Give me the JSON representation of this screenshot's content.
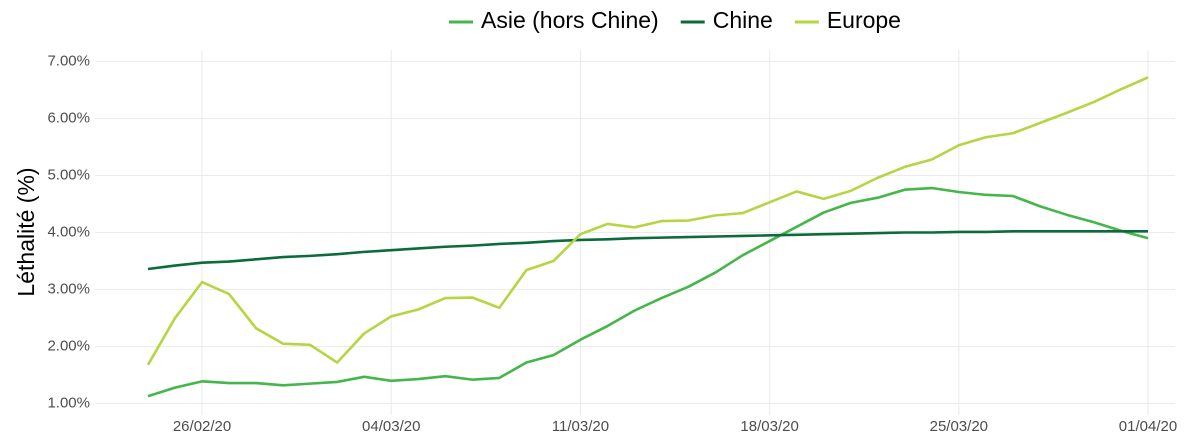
{
  "chart_data": {
    "type": "line",
    "y_label": "Léthalité (%)",
    "categories": [
      null,
      null,
      "26/02/20",
      null,
      null,
      null,
      null,
      null,
      null,
      "04/03/20",
      null,
      null,
      null,
      null,
      null,
      null,
      "11/03/20",
      null,
      null,
      null,
      null,
      null,
      null,
      "18/03/20",
      null,
      null,
      null,
      null,
      null,
      null,
      "25/03/20",
      null,
      null,
      null,
      null,
      null,
      null,
      "01/04/20"
    ],
    "series": [
      {
        "name": "Asie (hors Chine)",
        "color": "#45b649",
        "values": [
          1.13,
          1.28,
          1.39,
          1.36,
          1.36,
          1.32,
          1.35,
          1.38,
          1.47,
          1.4,
          1.43,
          1.48,
          1.42,
          1.45,
          1.72,
          1.85,
          2.12,
          2.36,
          2.63,
          2.85,
          3.05,
          3.3,
          3.6,
          3.85,
          4.1,
          4.35,
          4.52,
          4.61,
          4.75,
          4.78,
          4.71,
          4.66,
          4.64,
          4.46,
          4.31,
          4.18,
          4.03,
          3.9
        ]
      },
      {
        "name": "Chine",
        "color": "#0c6b3a",
        "values": [
          3.36,
          3.42,
          3.47,
          3.49,
          3.53,
          3.57,
          3.59,
          3.62,
          3.66,
          3.69,
          3.72,
          3.75,
          3.77,
          3.8,
          3.82,
          3.85,
          3.87,
          3.88,
          3.9,
          3.91,
          3.92,
          3.93,
          3.94,
          3.95,
          3.96,
          3.97,
          3.98,
          3.99,
          4.0,
          4.0,
          4.01,
          4.01,
          4.02,
          4.02,
          4.02,
          4.02,
          4.02,
          4.02
        ]
      },
      {
        "name": "Europe",
        "color": "#b5d543",
        "values": [
          1.68,
          2.5,
          3.13,
          2.92,
          2.32,
          2.05,
          2.03,
          1.72,
          2.23,
          2.53,
          2.65,
          2.85,
          2.86,
          2.68,
          3.34,
          3.5,
          3.97,
          4.15,
          4.09,
          4.2,
          4.21,
          4.3,
          4.34,
          4.53,
          4.72,
          4.59,
          4.73,
          4.96,
          5.15,
          5.28,
          5.53,
          5.67,
          5.74,
          5.92,
          6.1,
          6.29,
          6.51,
          6.72
        ]
      }
    ],
    "ylim": [
      0.8,
      7.2
    ],
    "yticks": [
      {
        "value": 1,
        "label": "1.00%"
      },
      {
        "value": 2,
        "label": "2.00%"
      },
      {
        "value": 3,
        "label": "3.00%"
      },
      {
        "value": 4,
        "label": "4.00%"
      },
      {
        "value": 5,
        "label": "5.00%"
      },
      {
        "value": 6,
        "label": "6.00%"
      },
      {
        "value": 7,
        "label": "7.00%"
      }
    ],
    "grid": true,
    "legend": "top"
  }
}
